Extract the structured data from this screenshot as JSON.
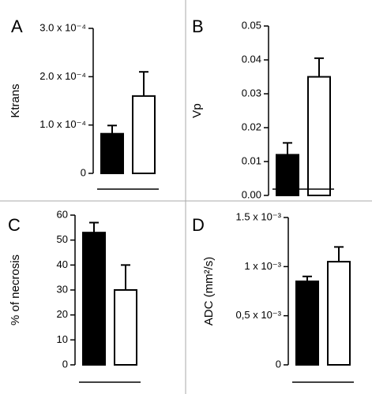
{
  "chart_data": [
    {
      "type": "bar",
      "panel": "A",
      "ylabel": "Ktrans",
      "categories": [
        null,
        null
      ],
      "values": [
        8.2e-05,
        0.00016
      ],
      "errors": [
        1.7e-05,
        5e-05
      ],
      "colors": [
        "#000000",
        "#ffffff"
      ],
      "ylim": [
        0,
        0.0003
      ],
      "yticks": [
        0,
        {
          "value": 0.0001,
          "label": "1.0 x 10⁻⁴"
        },
        {
          "value": 0.0002,
          "label": "2.0 x 10⁻⁴"
        },
        {
          "value": 0.0003,
          "label": "3.0 x 10⁻⁴"
        }
      ]
    },
    {
      "type": "bar",
      "panel": "B",
      "ylabel": "Vp",
      "categories": [
        null,
        null
      ],
      "values": [
        0.012,
        0.035
      ],
      "errors": [
        0.0035,
        0.0055
      ],
      "colors": [
        "#000000",
        "#ffffff"
      ],
      "ylim": [
        0,
        0.05
      ],
      "yticks": [
        {
          "value": 0,
          "label": "0.00"
        },
        0.01,
        0.02,
        0.03,
        0.04,
        0.05
      ]
    },
    {
      "type": "bar",
      "panel": "C",
      "ylabel": "% of necrosis",
      "categories": [
        null,
        null
      ],
      "values": [
        53,
        30
      ],
      "errors": [
        4,
        10
      ],
      "colors": [
        "#000000",
        "#ffffff"
      ],
      "ylim": [
        0,
        60
      ],
      "yticks": [
        0,
        10,
        20,
        30,
        40,
        50,
        60
      ]
    },
    {
      "type": "bar",
      "panel": "D",
      "ylabel": "ADC (mm²/s)",
      "categories": [
        null,
        null
      ],
      "values": [
        0.00085,
        0.00105
      ],
      "errors": [
        5e-05,
        0.00015
      ],
      "colors": [
        "#000000",
        "#ffffff"
      ],
      "ylim": [
        0,
        0.0015
      ],
      "yticks": [
        0,
        {
          "value": 0.0005,
          "label": "0,5 x 10⁻³"
        },
        {
          "value": 0.001,
          "label": "1 x 10⁻³"
        },
        {
          "value": 0.0015,
          "label": "1.5 x 10⁻³"
        }
      ]
    }
  ]
}
